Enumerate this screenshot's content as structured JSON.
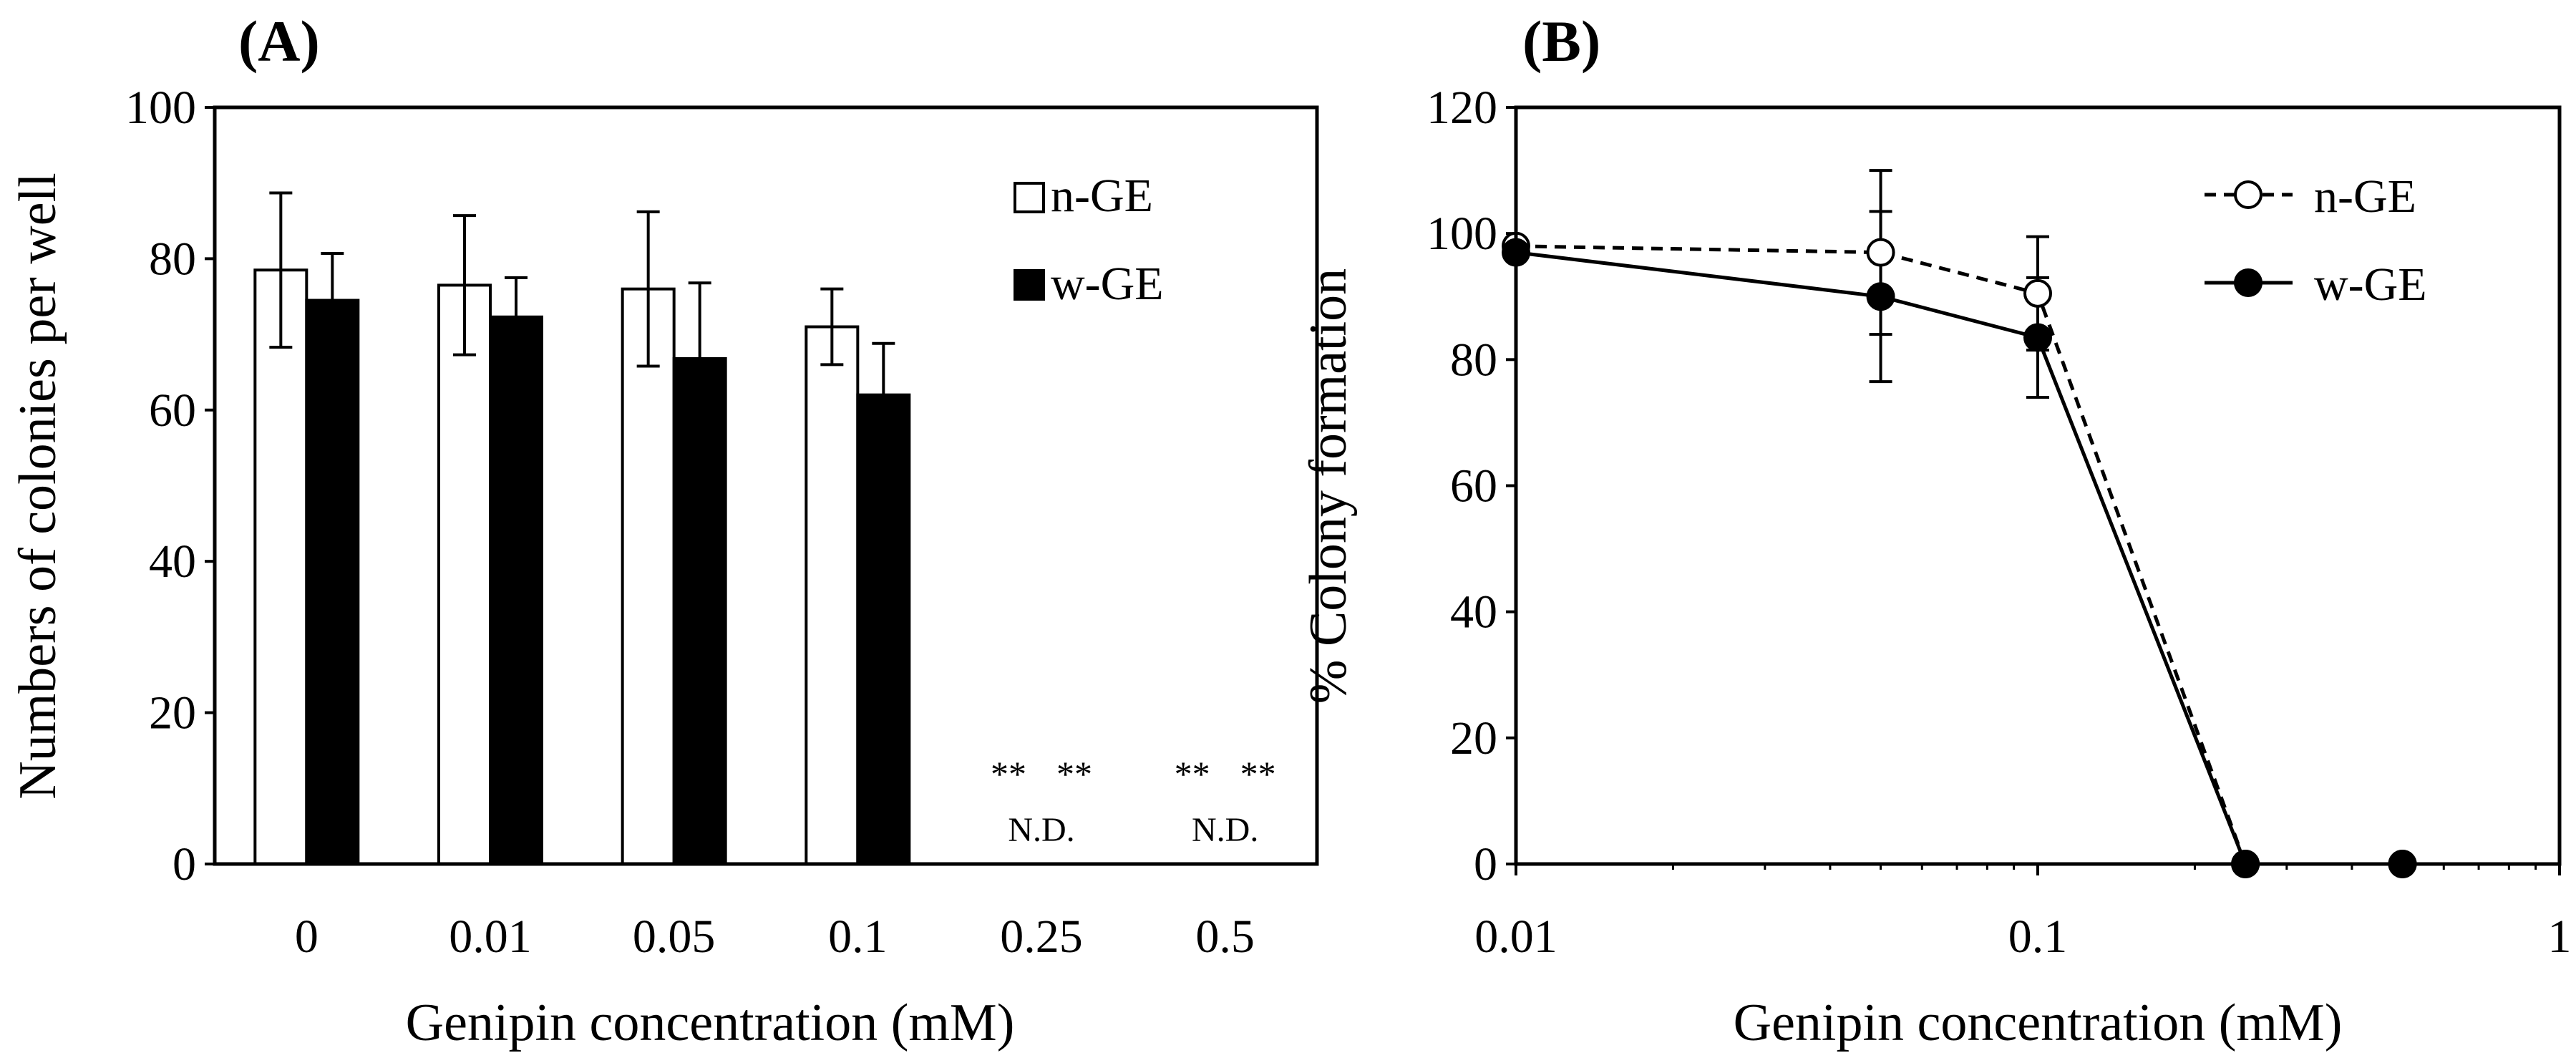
{
  "chart_data": [
    {
      "panel": "(A)",
      "type": "bar",
      "xlabel": "Genipin concentration (mM)",
      "ylabel": "Numbers of colonies per well",
      "ylim": [
        0,
        100
      ],
      "yticks": [
        "0",
        "20",
        "40",
        "60",
        "80",
        "100"
      ],
      "categories": [
        "0",
        "0.01",
        "0.05",
        "0.1",
        "0.25",
        "0.5"
      ],
      "legend_position": "top-right",
      "series": [
        {
          "name": "n-GE",
          "color": "#ffffff",
          "values": [
            78.5,
            76.5,
            76,
            71,
            0,
            0
          ],
          "errors": [
            10.2,
            9.2,
            10.2,
            5,
            0,
            0
          ]
        },
        {
          "name": "w-GE",
          "color": "#000000",
          "values": [
            74.5,
            72.3,
            66.8,
            62,
            0,
            0
          ],
          "errors": [
            6.2,
            5.2,
            10,
            6.8,
            0,
            0
          ]
        }
      ],
      "annotations": [
        {
          "category": "0.25",
          "significance": [
            "**",
            "**"
          ],
          "label": "N.D."
        },
        {
          "category": "0.5",
          "significance": [
            "**",
            "**"
          ],
          "label": "N.D."
        }
      ]
    },
    {
      "panel": "(B)",
      "type": "line",
      "xscale": "log",
      "xlabel": "Genipin concentration (mM)",
      "ylabel": "% Colony formation",
      "xlim": [
        0.01,
        1
      ],
      "ylim": [
        0,
        120
      ],
      "xticks": [
        "0.01",
        "0.1",
        "1"
      ],
      "yticks": [
        "0",
        "20",
        "40",
        "60",
        "80",
        "100",
        "120"
      ],
      "legend_position": "top-right",
      "series": [
        {
          "name": "n-GE",
          "marker": "open-circle",
          "line": "dashed",
          "x": [
            0.01,
            0.05,
            0.1,
            0.25,
            0.5
          ],
          "y": [
            98,
            97,
            90.5,
            0,
            0
          ],
          "errors": [
            0,
            13,
            9,
            0,
            0
          ]
        },
        {
          "name": "w-GE",
          "marker": "filled-circle",
          "line": "solid",
          "x": [
            0.01,
            0.05,
            0.1,
            0.25,
            0.5
          ],
          "y": [
            97,
            90,
            83.5,
            0,
            0
          ],
          "errors": [
            0,
            13.5,
            9.5,
            0,
            0
          ]
        }
      ]
    }
  ]
}
